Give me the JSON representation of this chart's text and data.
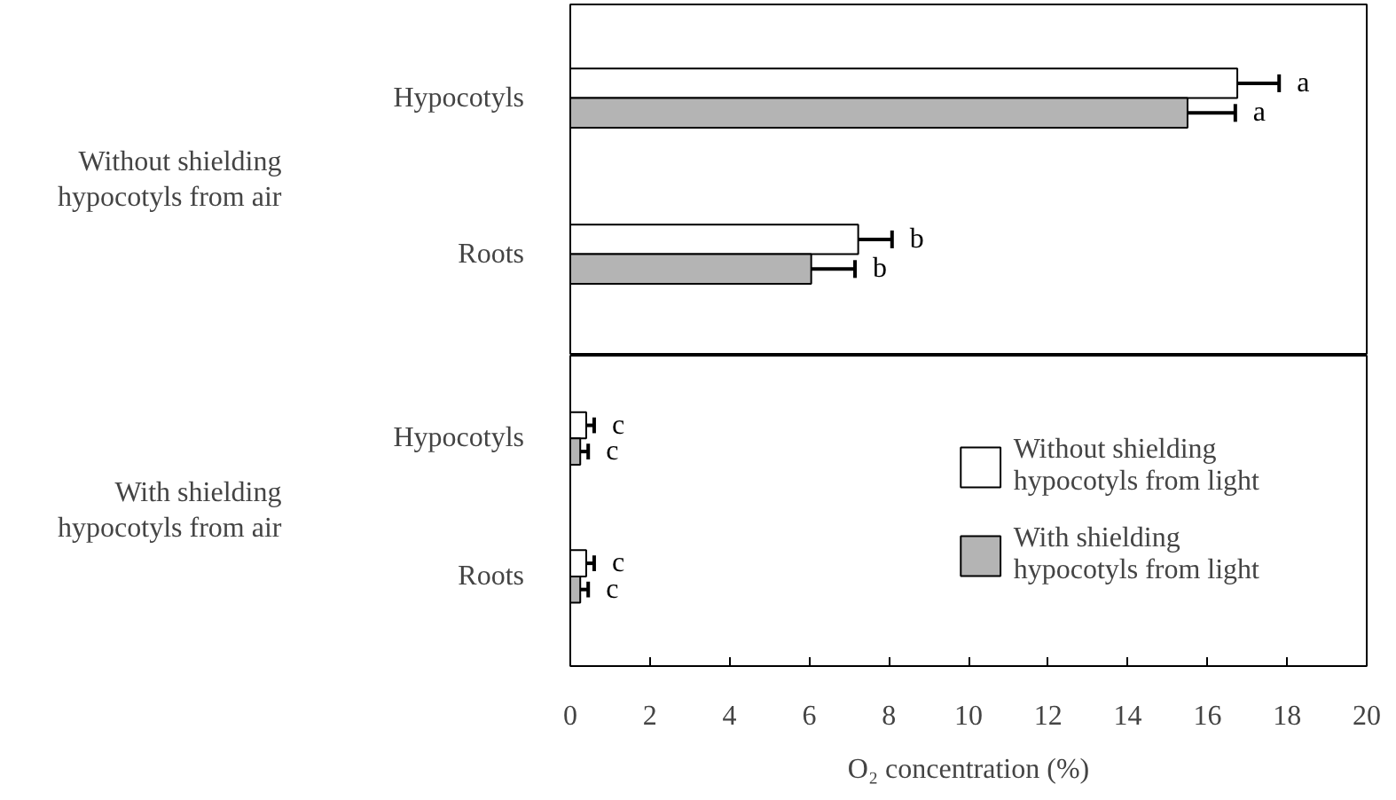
{
  "chart_data": [
    {
      "type": "bar",
      "orientation": "horizontal",
      "ylabel": "Without shielding\nhypocotyls from air",
      "categories": [
        "Hypocotyls",
        "Roots"
      ],
      "xlim": [
        0,
        20
      ],
      "tick_labels": "y",
      "grid": false,
      "legend": false,
      "series": [
        {
          "color": "#ffffff",
          "values": [
            16.75,
            7.23
          ],
          "errors": [
            [
              16.75,
              17.8
            ],
            [
              7.23,
              8.08
            ]
          ],
          "value_labels": [
            "a",
            "b"
          ]
        },
        {
          "color": "#b4b4b4",
          "values": [
            15.5,
            6.05
          ],
          "errors": [
            [
              15.5,
              16.7
            ],
            [
              6.05,
              7.15
            ]
          ],
          "value_labels": [
            "a",
            "b"
          ]
        }
      ]
    },
    {
      "type": "bar",
      "orientation": "horizontal",
      "ylabel": "With shielding\nhypocotyls from air",
      "xlabel": "O₂ concentration (%)",
      "categories": [
        "Hypocotyls",
        "Roots"
      ],
      "xlim": [
        0,
        20
      ],
      "xticks": [
        0,
        2,
        4,
        6,
        8,
        10,
        12,
        14,
        16,
        18,
        20
      ],
      "grid": false,
      "legend": "right",
      "series": [
        {
          "name": "Without shielding\nhypocotyls from light",
          "color": "#ffffff",
          "values": [
            0.4,
            0.4
          ],
          "errors": [
            [
              0.4,
              0.6
            ],
            [
              0.4,
              0.6
            ]
          ],
          "value_labels": [
            "c",
            "c"
          ]
        },
        {
          "name": "With shielding\nhypocotyls from light",
          "color": "#b4b4b4",
          "values": [
            0.25,
            0.25
          ],
          "errors": [
            [
              0.25,
              0.45
            ],
            [
              0.25,
              0.45
            ]
          ],
          "value_labels": [
            "c",
            "c"
          ]
        }
      ]
    }
  ]
}
